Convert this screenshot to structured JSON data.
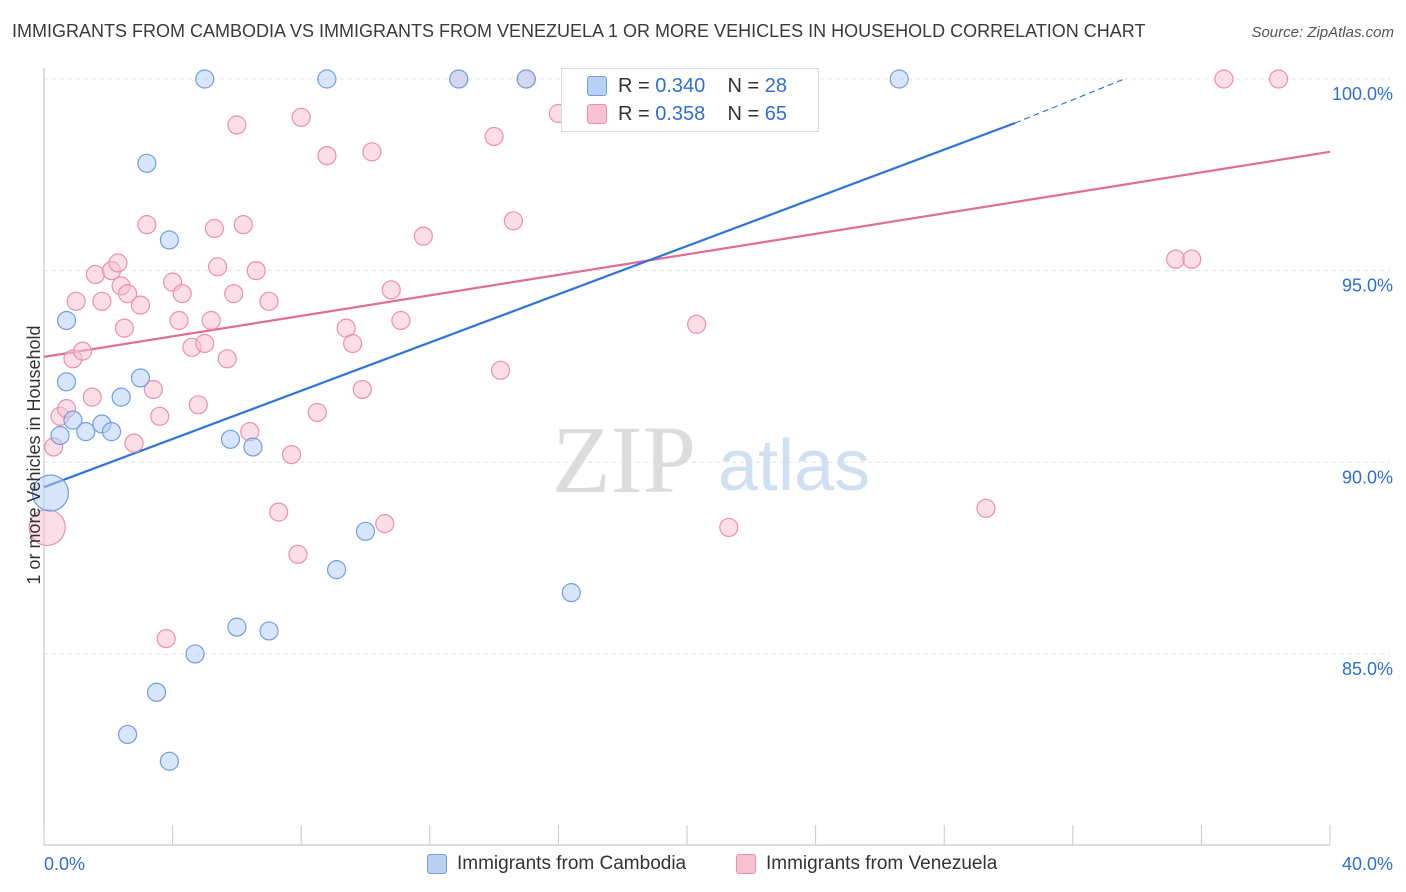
{
  "title": "IMMIGRANTS FROM CAMBODIA VS IMMIGRANTS FROM VENEZUELA 1 OR MORE VEHICLES IN HOUSEHOLD CORRELATION CHART",
  "source": "Source: ZipAtlas.com",
  "watermark": {
    "zip": "ZIP",
    "atlas": "atlas"
  },
  "legend": {
    "r_label": "R =",
    "n_label": "N =",
    "rows": [
      {
        "r": "0.340",
        "n": "28"
      },
      {
        "r": "0.358",
        "n": "65"
      }
    ]
  },
  "colors": {
    "cambodia_fill": "#b8d0f5",
    "cambodia_stroke": "#6e9fe0",
    "cambodia_line": "#2f74d6",
    "venezuela_fill": "#f7c3d2",
    "venezuela_stroke": "#ec8fae",
    "venezuela_line": "#e06d98",
    "axis_text": "#2e6fd1",
    "grid": "#e3e3e3"
  },
  "chart_data": {
    "type": "scatter",
    "title": "IMMIGRANTS FROM CAMBODIA VS IMMIGRANTS FROM VENEZUELA 1 OR MORE VEHICLES IN HOUSEHOLD CORRELATION CHART",
    "xlabel": "",
    "ylabel": "1 or more Vehicles in Household",
    "xlim": [
      0,
      40
    ],
    "ylim": [
      80.2,
      100.4
    ],
    "x_ticks": [
      "0.0%",
      "40.0%"
    ],
    "y_ticks": [
      {
        "value": 85,
        "label": "85.0%"
      },
      {
        "value": 90,
        "label": "90.0%"
      },
      {
        "value": 95,
        "label": "95.0%"
      },
      {
        "value": 100,
        "label": "100.0%"
      }
    ],
    "grid": true,
    "legend_position": "top-center",
    "series": [
      {
        "name": "Immigrants from Cambodia",
        "trend": {
          "x0": 0,
          "y0": 89.35,
          "x1": 30.2,
          "y1": 98.85,
          "dash_to_x": 33.6,
          "dash_to_y": 100.0
        },
        "points": [
          [
            0.2,
            89.2,
            18
          ],
          [
            0.5,
            90.7,
            9
          ],
          [
            0.7,
            92.1,
            9
          ],
          [
            0.7,
            93.7,
            9
          ],
          [
            0.9,
            91.1,
            9
          ],
          [
            1.3,
            90.8,
            9
          ],
          [
            1.8,
            91.0,
            9
          ],
          [
            2.1,
            90.8,
            9
          ],
          [
            2.4,
            91.7,
            9
          ],
          [
            3.0,
            92.2,
            9
          ],
          [
            3.2,
            97.8,
            9
          ],
          [
            3.9,
            95.8,
            9
          ],
          [
            5.0,
            100.0,
            9
          ],
          [
            5.8,
            90.6,
            9
          ],
          [
            6.5,
            90.4,
            9
          ],
          [
            8.8,
            100.0,
            9
          ],
          [
            9.1,
            87.2,
            9
          ],
          [
            10.0,
            88.2,
            9
          ],
          [
            12.9,
            100.0,
            9
          ],
          [
            15.0,
            100.0,
            9
          ],
          [
            16.4,
            86.6,
            9
          ],
          [
            26.6,
            100.0,
            9
          ],
          [
            6.0,
            85.7,
            9
          ],
          [
            7.0,
            85.6,
            9
          ],
          [
            4.7,
            85.0,
            9
          ],
          [
            3.5,
            84.0,
            9
          ],
          [
            2.6,
            82.9,
            9
          ],
          [
            3.9,
            82.2,
            9
          ]
        ]
      },
      {
        "name": "Immigrants from Venezuela",
        "trend": {
          "x0": 0,
          "y0": 92.75,
          "x1": 40,
          "y1": 98.1
        },
        "points": [
          [
            0.1,
            88.3,
            18
          ],
          [
            0.3,
            90.4,
            9
          ],
          [
            0.5,
            91.2,
            9
          ],
          [
            0.7,
            91.4,
            9
          ],
          [
            0.9,
            92.7,
            9
          ],
          [
            1.2,
            92.9,
            9
          ],
          [
            1.5,
            91.7,
            9
          ],
          [
            1.6,
            94.9,
            9
          ],
          [
            1.8,
            94.2,
            9
          ],
          [
            2.1,
            95.0,
            9
          ],
          [
            2.3,
            95.2,
            9
          ],
          [
            2.4,
            94.6,
            9
          ],
          [
            2.6,
            94.4,
            9
          ],
          [
            2.8,
            90.5,
            9
          ],
          [
            3.0,
            94.1,
            9
          ],
          [
            3.2,
            96.2,
            9
          ],
          [
            3.4,
            91.9,
            9
          ],
          [
            3.6,
            91.2,
            9
          ],
          [
            3.8,
            85.4,
            9
          ],
          [
            4.0,
            94.7,
            9
          ],
          [
            4.2,
            93.7,
            9
          ],
          [
            4.3,
            94.4,
            9
          ],
          [
            4.6,
            93.0,
            9
          ],
          [
            4.8,
            91.5,
            9
          ],
          [
            5.0,
            93.1,
            9
          ],
          [
            5.2,
            93.7,
            9
          ],
          [
            5.3,
            96.1,
            9
          ],
          [
            5.4,
            95.1,
            9
          ],
          [
            5.7,
            92.7,
            9
          ],
          [
            5.9,
            94.4,
            9
          ],
          [
            6.0,
            98.8,
            9
          ],
          [
            6.2,
            96.2,
            9
          ],
          [
            6.4,
            90.8,
            9
          ],
          [
            6.6,
            95.0,
            9
          ],
          [
            7.0,
            94.2,
            9
          ],
          [
            7.3,
            88.7,
            9
          ],
          [
            7.7,
            90.2,
            9
          ],
          [
            8.0,
            99.0,
            9
          ],
          [
            7.9,
            87.6,
            9
          ],
          [
            8.5,
            91.3,
            9
          ],
          [
            8.8,
            98.0,
            9
          ],
          [
            9.4,
            93.5,
            9
          ],
          [
            9.6,
            93.1,
            9
          ],
          [
            9.9,
            91.9,
            9
          ],
          [
            10.2,
            98.1,
            9
          ],
          [
            10.6,
            88.4,
            9
          ],
          [
            10.8,
            94.5,
            9
          ],
          [
            11.1,
            93.7,
            9
          ],
          [
            11.8,
            95.9,
            9
          ],
          [
            12.9,
            100.0,
            9
          ],
          [
            14.0,
            98.5,
            9
          ],
          [
            14.2,
            92.4,
            9
          ],
          [
            14.6,
            96.3,
            9
          ],
          [
            15.0,
            100.0,
            9
          ],
          [
            16.0,
            99.1,
            9
          ],
          [
            20.3,
            93.6,
            9
          ],
          [
            21.3,
            88.3,
            9
          ],
          [
            22.3,
            100.0,
            9
          ],
          [
            29.3,
            88.8,
            9
          ],
          [
            35.2,
            95.3,
            9
          ],
          [
            35.7,
            95.3,
            9
          ],
          [
            36.7,
            100.0,
            9
          ],
          [
            38.4,
            100.0,
            9
          ],
          [
            2.5,
            93.5,
            9
          ],
          [
            1.0,
            94.2,
            9
          ]
        ]
      }
    ]
  }
}
